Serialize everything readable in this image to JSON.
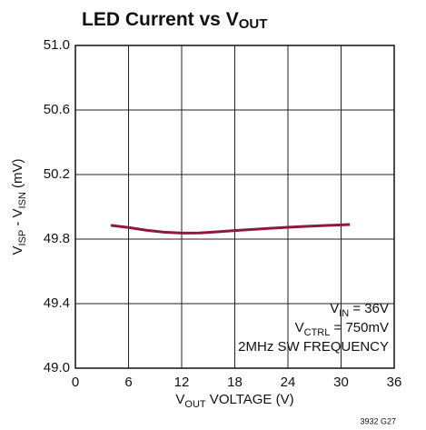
{
  "chart_data": {
    "type": "line",
    "title": [
      "LED Current vs V",
      "OUT"
    ],
    "xlabel": [
      "V",
      "OUT",
      " VOLTAGE (V)"
    ],
    "ylabel": [
      "V",
      "ISP",
      " - V",
      "ISN",
      " (mV)"
    ],
    "annotations": [
      [
        "V",
        "IN",
        " = 36V"
      ],
      [
        "V",
        "CTRL",
        " = 750mV"
      ],
      [
        "2MHz SW FREQUENCY"
      ]
    ],
    "note": "3932 G27",
    "x": [
      4,
      6,
      8,
      10,
      12,
      14,
      16,
      18,
      20,
      22,
      24,
      26,
      28,
      31
    ],
    "series": [
      {
        "name": "LED current",
        "color": "#8b1a3c",
        "values": [
          49.885,
          49.872,
          49.855,
          49.843,
          49.837,
          49.838,
          49.845,
          49.853,
          49.86,
          49.867,
          49.873,
          49.879,
          49.884,
          49.89
        ]
      }
    ],
    "xlim": [
      0,
      36
    ],
    "xticks": [
      0,
      6,
      12,
      18,
      24,
      30,
      36
    ],
    "ylim": [
      49,
      51
    ],
    "yticks": [
      {
        "value": 49,
        "label": "49.0"
      },
      49.4,
      49.8,
      50.2,
      50.6,
      {
        "value": 51,
        "label": "51.0"
      }
    ],
    "grid": true
  }
}
